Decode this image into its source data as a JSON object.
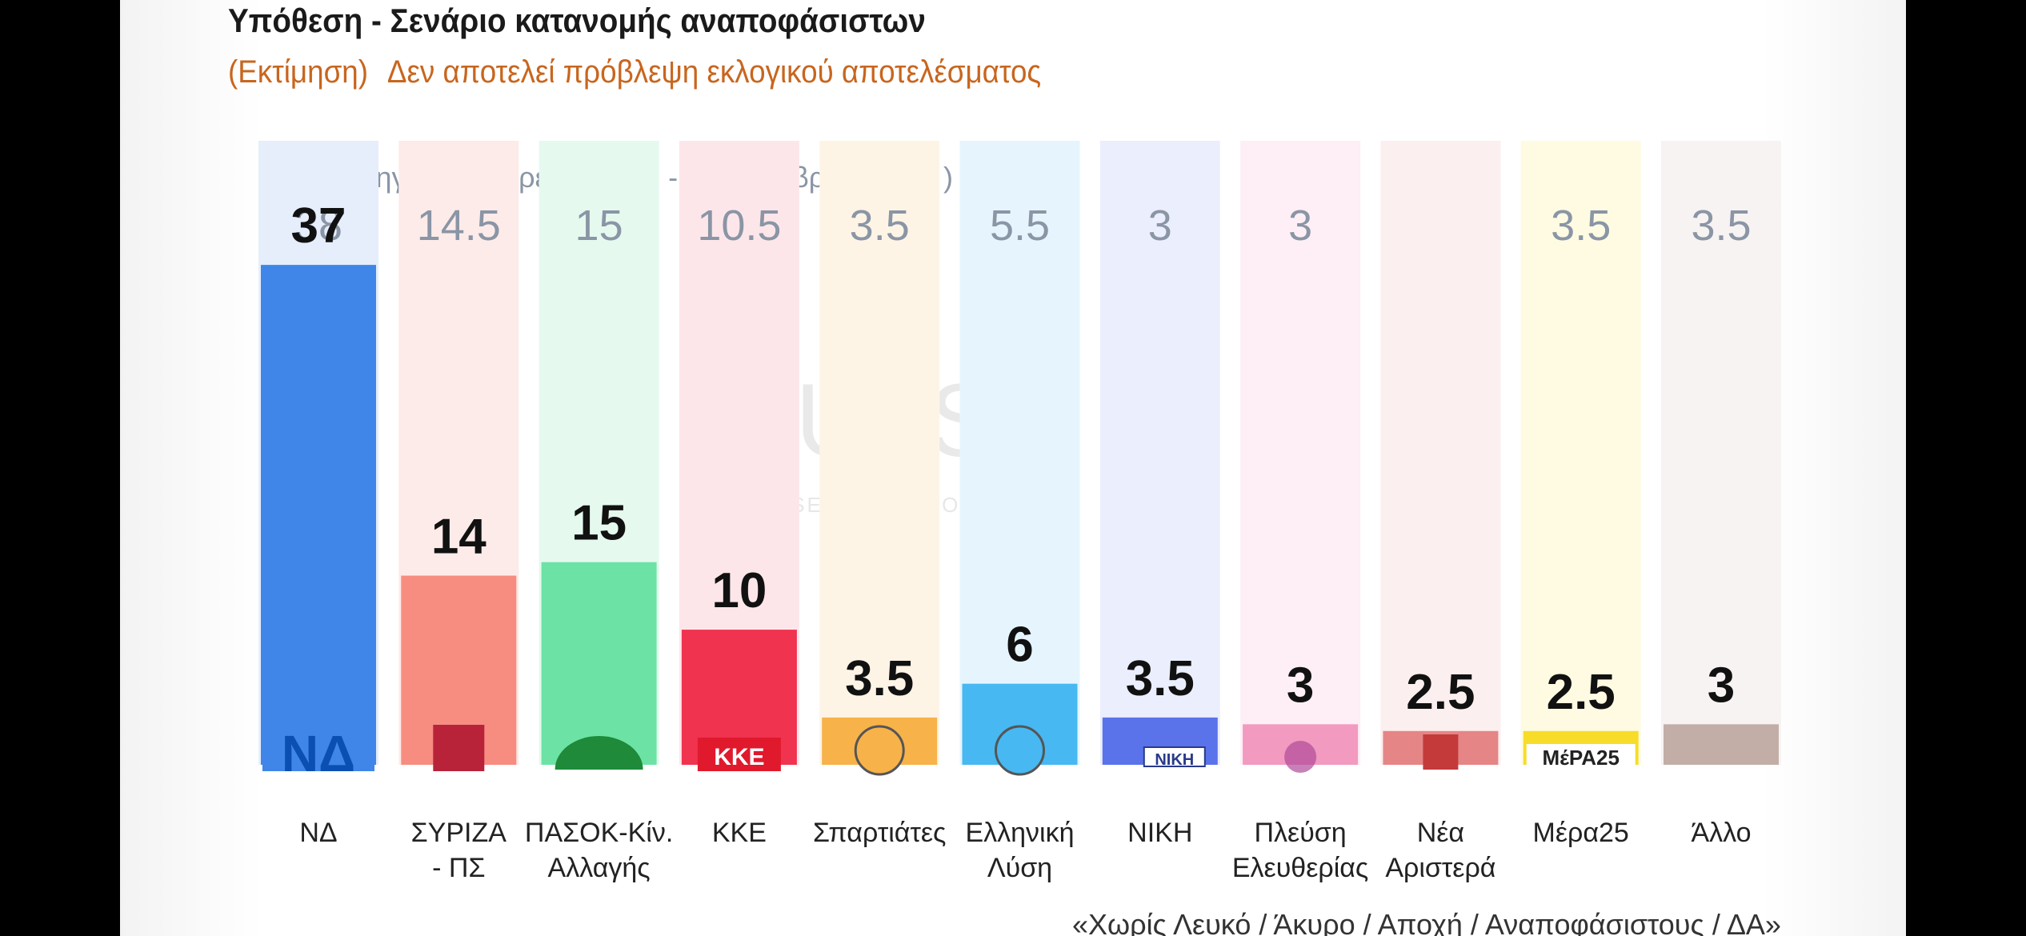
{
  "header": {
    "title": "Υπόθεση - Σενάριο κατανομής αναποφάσιστων",
    "subtitle_a": "(Εκτίμηση)",
    "subtitle_b": "Δεν αποτελεί πρόβλεψη εκλογικού αποτελέσματος"
  },
  "watermark": {
    "brand": "PULSE",
    "tagline": "RESEARCH & CONSULTING"
  },
  "footnote": "«Χωρίς Λευκό / Άκυρο / Αποχή / Αναποφάσιστους / ΔΑ»",
  "colors": {
    "accent_orange": "#c8661e",
    "previous_value_gray": "#8a95a5",
    "value_black": "#111111"
  },
  "chart_data": {
    "type": "bar",
    "title": "Υπόθεση - Σενάριο κατανομής αναποφάσιστων",
    "subtitle": "(Εκτίμηση) Δεν αποτελεί πρόβλεψη εκλογικού αποτελέσματος",
    "previous_label": "Προηγούμενη έρευνα:  ( 19 - 21 Νοεμβρίου 2023 )",
    "ylim": [
      0,
      45
    ],
    "grid": false,
    "legend": "none",
    "categories": [
      {
        "label": [
          "ΝΔ"
        ],
        "value": 37,
        "value_label": "37",
        "previous": "38",
        "color": "#3f86e8",
        "bg": "#e6eefb",
        "logo": "nd-logo",
        "logo_text": "ΝΔ"
      },
      {
        "label": [
          "ΣΥΡΙΖΑ",
          "- ΠΣ"
        ],
        "value": 14,
        "value_label": "14",
        "previous": "14.5",
        "color": "#f78c80",
        "bg": "#fdebe9",
        "logo": "syriza-logo",
        "logo_text": ""
      },
      {
        "label": [
          "ΠΑΣΟΚ-Κίν.",
          "Αλλαγής"
        ],
        "value": 15,
        "value_label": "15",
        "previous": "15",
        "color": "#6ce3a5",
        "bg": "#e5f9ef",
        "logo": "pasok-logo",
        "logo_text": ""
      },
      {
        "label": [
          "ΚΚΕ"
        ],
        "value": 10,
        "value_label": "10",
        "previous": "10.5",
        "color": "#f0334f",
        "bg": "#fde6e9",
        "logo": "kke-logo",
        "logo_text": "KKE"
      },
      {
        "label": [
          "Σπαρτιάτες"
        ],
        "value": 3.5,
        "value_label": "3.5",
        "previous": "3.5",
        "color": "#f7b24a",
        "bg": "#fef4e6",
        "logo": "spartiates-logo",
        "logo_text": ""
      },
      {
        "label": [
          "Ελληνική",
          "Λύση"
        ],
        "value": 6,
        "value_label": "6",
        "previous": "5.5",
        "color": "#47b8f2",
        "bg": "#e6f5fd",
        "logo": "elliniki-lysi-logo",
        "logo_text": ""
      },
      {
        "label": [
          "ΝΙΚΗ"
        ],
        "value": 3.5,
        "value_label": "3.5",
        "previous": "3",
        "color": "#5a73ea",
        "bg": "#ebeefc",
        "logo": "niki-logo",
        "logo_text": "ΝΙΚΗ"
      },
      {
        "label": [
          "Πλεύση",
          "Ελευθερίας"
        ],
        "value": 3,
        "value_label": "3",
        "previous": "3",
        "color": "#f29ac0",
        "bg": "#fdeff5",
        "logo": "plefsi-logo",
        "logo_text": ""
      },
      {
        "label": [
          "Νέα",
          "Αριστερά"
        ],
        "value": 2.5,
        "value_label": "2.5",
        "previous": "",
        "color": "#e58585",
        "bg": "#fcefef",
        "logo": "nea-aristera-logo",
        "logo_text": ""
      },
      {
        "label": [
          "Μέρα25"
        ],
        "value": 2.5,
        "value_label": "2.5",
        "previous": "3.5",
        "color": "#f7dc2a",
        "bg": "#fefbe2",
        "logo": "mera25-logo",
        "logo_text": "ΜέΡΑ25"
      },
      {
        "label": [
          "Άλλο"
        ],
        "value": 3,
        "value_label": "3",
        "previous": "3.5",
        "color": "#c2aea7",
        "bg": "#f7f3f2",
        "logo": "",
        "logo_text": ""
      }
    ]
  }
}
